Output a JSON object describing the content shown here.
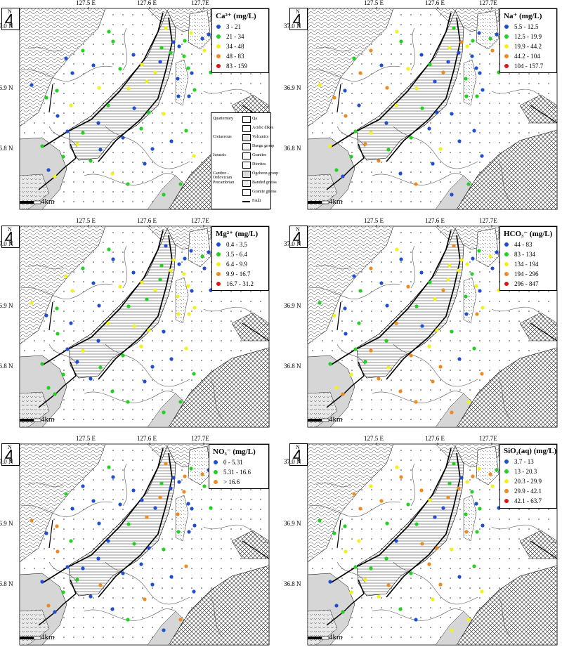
{
  "axes": {
    "lon_ticks": [
      "127.5 E",
      "127.6 E",
      "127.7E"
    ],
    "lat_ticks": [
      "37.0 N",
      "36.9 N",
      "36.8 N"
    ],
    "scale_label": "4km",
    "north_letter": "N"
  },
  "colors": {
    "blue": "#1f4fd0",
    "green": "#22d022",
    "yellow": "#f2f21a",
    "orange": "#ee8a1e",
    "red": "#e01414",
    "fault": "#000000",
    "grey_unit": "#c8c8c8"
  },
  "panels": [
    {
      "id": "ca",
      "title": "Ca²⁺ (mg/L)",
      "legend": [
        {
          "range": "3 - 21",
          "color": "#1f4fd0"
        },
        {
          "range": "21 - 34",
          "color": "#22d022"
        },
        {
          "range": "34 - 48",
          "color": "#f2f21a"
        },
        {
          "range": "48 - 83",
          "color": "#ee8a1e"
        },
        {
          "range": "83 - 159",
          "color": "#e01414"
        }
      ]
    },
    {
      "id": "na",
      "title": "Na⁺ (mg/L)",
      "legend": [
        {
          "range": "5.5 - 12.5",
          "color": "#1f4fd0"
        },
        {
          "range": "12.5 - 19.9",
          "color": "#22d022"
        },
        {
          "range": "19.9 - 44.2",
          "color": "#f2f21a"
        },
        {
          "range": "44.2 - 104",
          "color": "#ee8a1e"
        },
        {
          "range": "104 - 157.7",
          "color": "#e01414"
        }
      ]
    },
    {
      "id": "mg",
      "title": "Mg²⁺ (mg/L)",
      "legend": [
        {
          "range": "0.4 - 3.5",
          "color": "#1f4fd0"
        },
        {
          "range": "3.5 - 6.4",
          "color": "#22d022"
        },
        {
          "range": "6.4 - 9.9",
          "color": "#f2f21a"
        },
        {
          "range": "9.9 - 16.7",
          "color": "#ee8a1e"
        },
        {
          "range": "16.7 - 31.2",
          "color": "#e01414"
        }
      ]
    },
    {
      "id": "hco3",
      "title": "HCO₃⁻ (mg/L)",
      "legend": [
        {
          "range": "44 - 83",
          "color": "#1f4fd0"
        },
        {
          "range": "83 - 134",
          "color": "#22d022"
        },
        {
          "range": "134 - 194",
          "color": "#f2f21a"
        },
        {
          "range": "194 - 296",
          "color": "#ee8a1e"
        },
        {
          "range": "296 - 847",
          "color": "#e01414"
        }
      ]
    },
    {
      "id": "no3",
      "title": "NO₃⁻ (mg/L)",
      "legend": [
        {
          "range": "0 - 5.31",
          "color": "#1f4fd0"
        },
        {
          "range": "5.31 - 16.6",
          "color": "#22d022"
        },
        {
          "range": "> 16.6",
          "color": "#ee8a1e"
        }
      ]
    },
    {
      "id": "sio2",
      "title": "SiO₂(aq) (mg/L)",
      "legend": [
        {
          "range": "3.7 - 13",
          "color": "#1f4fd0"
        },
        {
          "range": "13 - 20.3",
          "color": "#22d022"
        },
        {
          "range": "20.3 - 29.9",
          "color": "#f2f21a"
        },
        {
          "range": "29.9 - 42.1",
          "color": "#ee8a1e"
        },
        {
          "range": "42.1 - 63.7",
          "color": "#e01414"
        }
      ]
    }
  ],
  "geology_legend": {
    "rows": [
      {
        "era": "Quarternary",
        "unit": "Qa"
      },
      {
        "era": "",
        "unit": "Acidic dikes"
      },
      {
        "era": "Cretaceous",
        "unit": "Volcanics"
      },
      {
        "era": "",
        "unit": "Daegu group"
      },
      {
        "era": "Jurassic",
        "unit": "Granites"
      },
      {
        "era": "",
        "unit": "Diorites"
      },
      {
        "era": "Cambro - Ordovician",
        "unit": "Ogcheon group"
      },
      {
        "era": "Precambrian",
        "unit": "Banded gneiss"
      },
      {
        "era": "",
        "unit": "Granite gneiss"
      },
      {
        "era": "",
        "unit": "Fault"
      }
    ]
  }
}
